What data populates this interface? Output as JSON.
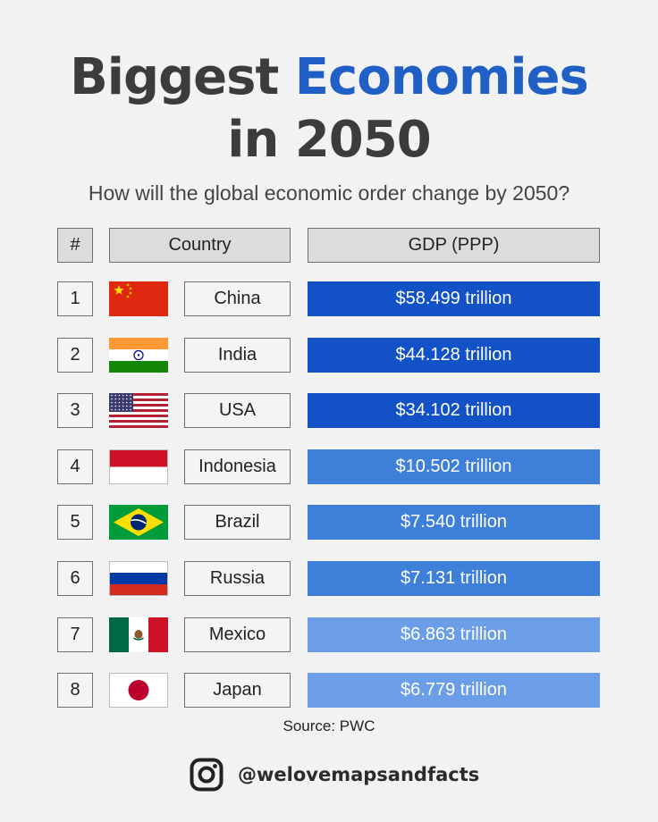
{
  "title": {
    "part1": "Biggest ",
    "accent": "Economies",
    "line2": "in 2050"
  },
  "subtitle": "How will the global economic order change by 2050?",
  "colors": {
    "tier1": "#1351c7",
    "tier2": "#3e7fd9",
    "tier3": "#6b9ee6",
    "accent": "#1f5fc6"
  },
  "chart_data": {
    "type": "table",
    "columns": [
      "#",
      "Country",
      "GDP (PPP)"
    ],
    "rows": [
      {
        "rank": "1",
        "country": "China",
        "flag": "china-flag",
        "gdp_text": "$58.499 trillion",
        "value": 58.499,
        "tier": "tier1"
      },
      {
        "rank": "2",
        "country": "India",
        "flag": "india-flag",
        "gdp_text": "$44.128 trillion",
        "value": 44.128,
        "tier": "tier1"
      },
      {
        "rank": "3",
        "country": "USA",
        "flag": "usa-flag",
        "gdp_text": "$34.102 trillion",
        "value": 34.102,
        "tier": "tier1"
      },
      {
        "rank": "4",
        "country": "Indonesia",
        "flag": "indonesia-flag",
        "gdp_text": "$10.502 trillion",
        "value": 10.502,
        "tier": "tier2"
      },
      {
        "rank": "5",
        "country": "Brazil",
        "flag": "brazil-flag",
        "gdp_text": "$7.540 trillion",
        "value": 7.54,
        "tier": "tier2"
      },
      {
        "rank": "6",
        "country": "Russia",
        "flag": "russia-flag",
        "gdp_text": "$7.131 trillion",
        "value": 7.131,
        "tier": "tier2"
      },
      {
        "rank": "7",
        "country": "Mexico",
        "flag": "mexico-flag",
        "gdp_text": "$6.863 trillion",
        "value": 6.863,
        "tier": "tier3"
      },
      {
        "rank": "8",
        "country": "Japan",
        "flag": "japan-flag",
        "gdp_text": "$6.779 trillion",
        "value": 6.779,
        "tier": "tier3"
      }
    ]
  },
  "source": "Source: PWC",
  "footer": {
    "icon": "instagram-icon",
    "handle": "@welovemapsandfacts"
  }
}
